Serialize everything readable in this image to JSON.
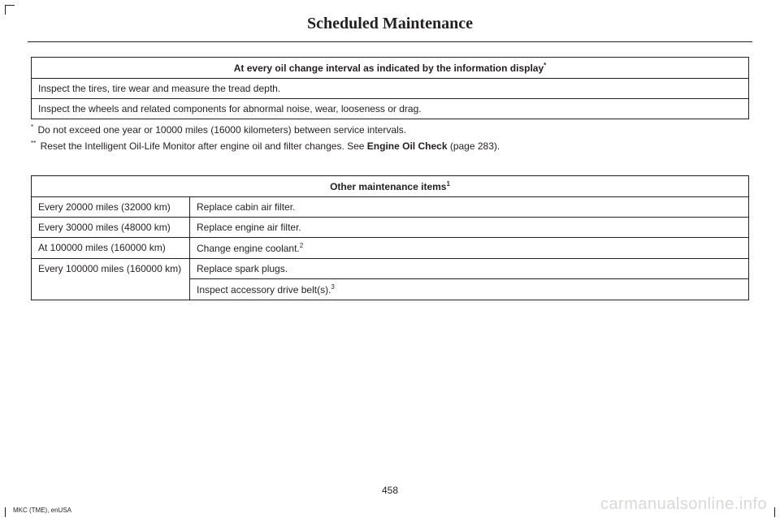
{
  "page": {
    "title": "Scheduled Maintenance",
    "number": "458",
    "footer_left": "MKC (TME), enUSA",
    "footer_right": "carmanualsonline.info"
  },
  "table1": {
    "header": "At every oil change interval as indicated by the information display",
    "header_sup": "*",
    "rows": [
      "Inspect the tires, tire wear and measure the tread depth.",
      "Inspect the wheels and related components for abnormal noise, wear, looseness or drag."
    ]
  },
  "footnotes1": [
    {
      "sup": "*",
      "text": "Do not exceed one year or 10000 miles (16000 kilometers) between service intervals."
    },
    {
      "sup": "**",
      "text_before": "Reset the Intelligent Oil-Life Monitor after engine oil and filter changes.  See ",
      "bold": "Engine Oil Check",
      "text_after": " (page 283)."
    }
  ],
  "table2": {
    "header": "Other maintenance items",
    "header_sup": "1",
    "rows": [
      {
        "interval": "Every 20000 miles (32000 km)",
        "task": "Replace cabin air filter.",
        "sup": "",
        "rowspan": 1
      },
      {
        "interval": "Every 30000 miles (48000 km)",
        "task": "Replace engine air filter.",
        "sup": "",
        "rowspan": 1
      },
      {
        "interval": "At 100000 miles (160000 km)",
        "task": "Change engine coolant.",
        "sup": "2",
        "rowspan": 1
      },
      {
        "interval": "Every 100000 miles (160000 km)",
        "task": "Replace spark plugs.",
        "sup": "",
        "rowspan": 2
      },
      {
        "interval": "",
        "task": "Inspect accessory drive belt(s).",
        "sup": "3",
        "rowspan": 0
      }
    ]
  }
}
